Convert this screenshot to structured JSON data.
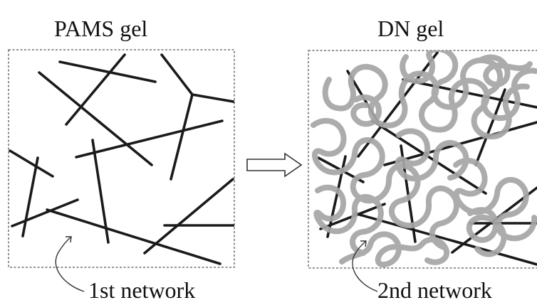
{
  "panels": [
    {
      "title": "PAMS gel",
      "caption": "1st network"
    },
    {
      "title": "DN gel",
      "caption": "2nd network"
    }
  ],
  "colors": {
    "first_network": "#1a1a1a",
    "second_network": "#a6a6a6",
    "frame": "#555555",
    "arrow": "#333333"
  },
  "icons": {
    "transition": "right-arrow-icon",
    "pointer": "curved-pointer-icon"
  }
}
